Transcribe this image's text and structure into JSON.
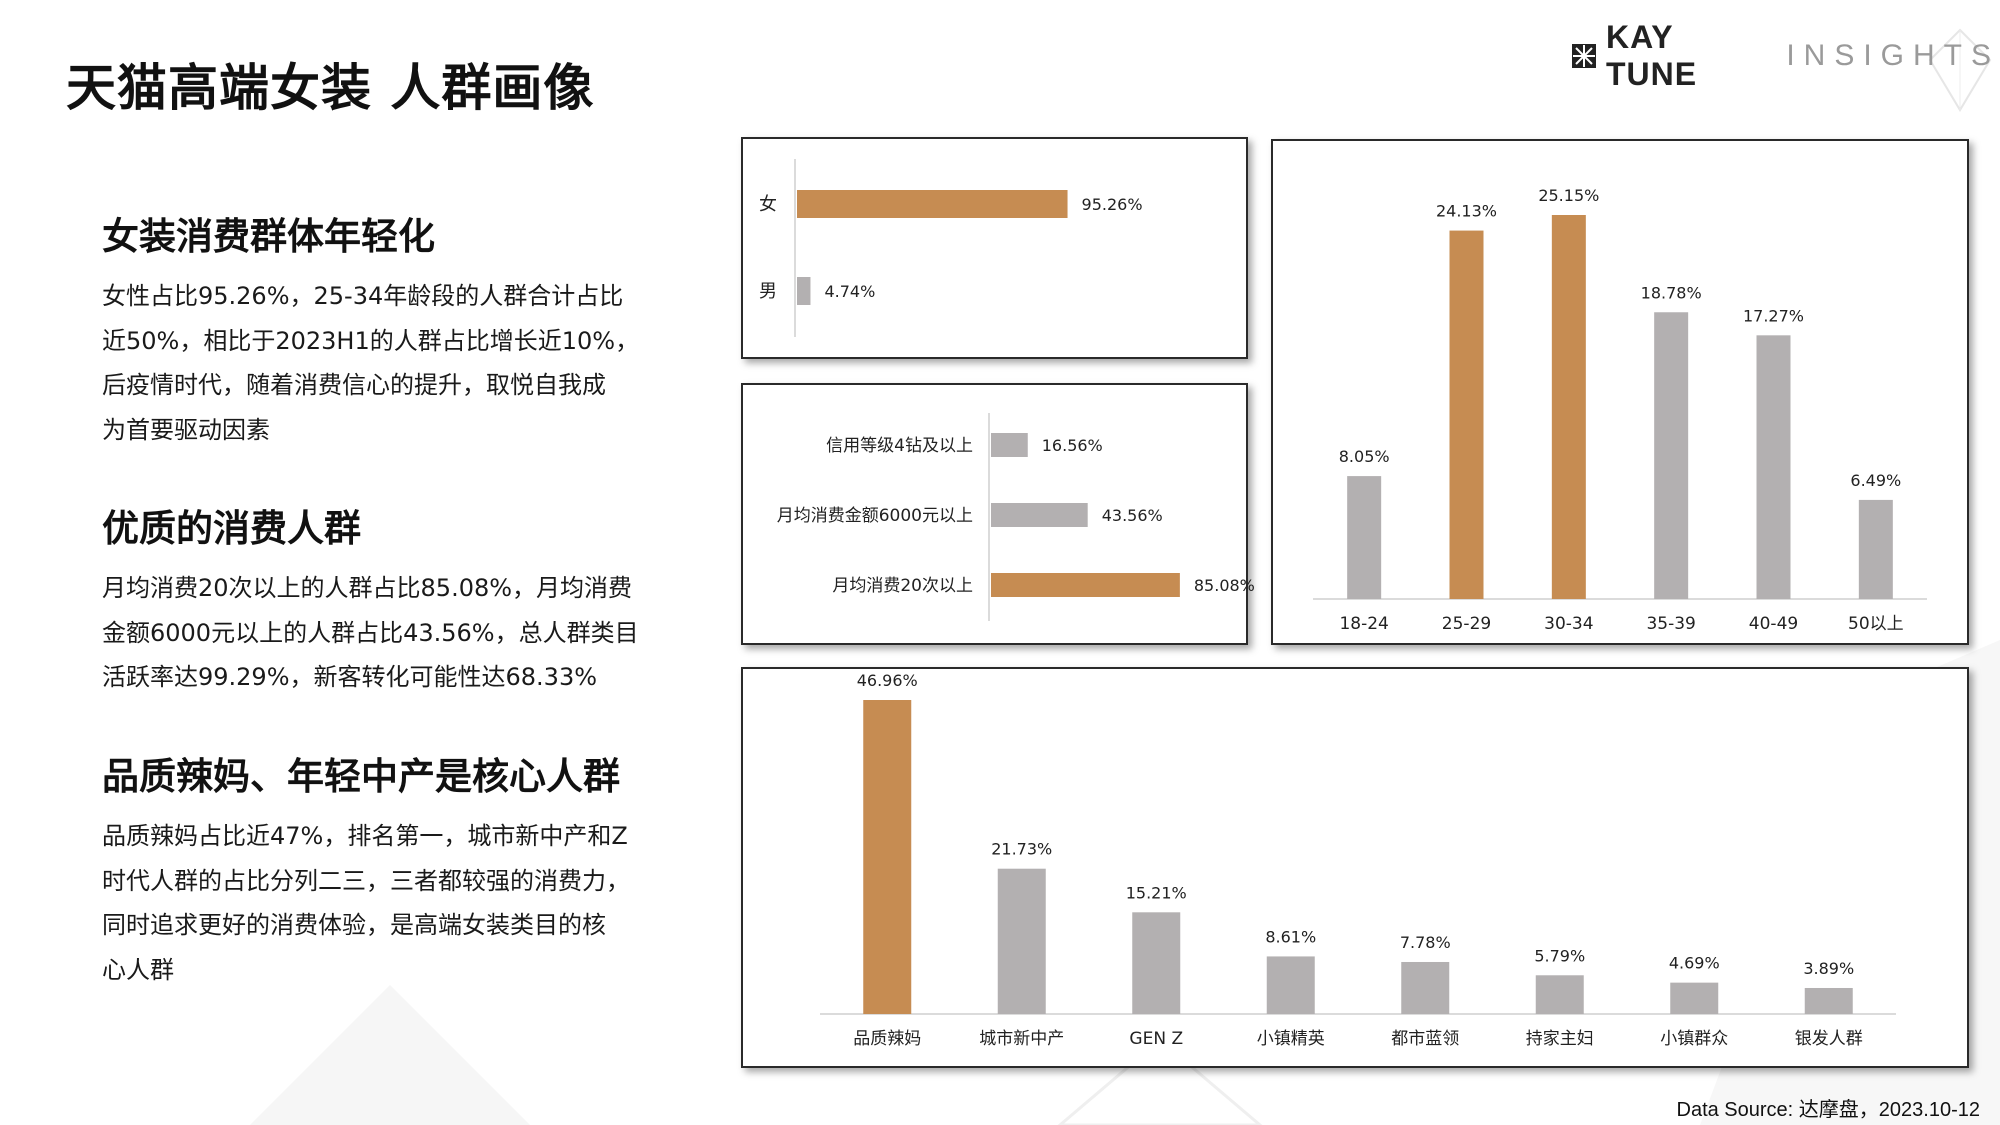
{
  "page": {
    "title": "天猫高端女装 人群画像",
    "logo_brand": "KAY TUNE",
    "logo_sub": "INSIGHTS",
    "source": "Data Source: 达摩盘，2023.10-12"
  },
  "sections": [
    {
      "heading": "女装消费群体年轻化",
      "lines": [
        "女性占比95.26%，25-34年龄段的人群合计占比",
        "近50%，相比于2023H1的人群占比增长近10%，",
        "后疫情时代，随着消费信心的提升，取悦自我成",
        "为首要驱动因素"
      ]
    },
    {
      "heading": "优质的消费人群",
      "lines": [
        "月均消费20次以上的人群占比85.08%，月均消费",
        "金额6000元以上的人群占比43.56%，总人群类目",
        "活跃率达99.29%，新客转化可能性达68.33%"
      ]
    },
    {
      "heading": "品质辣妈、年轻中产是核心人群",
      "lines": [
        "品质辣妈占比近47%，排名第一，城市新中产和Z",
        "时代人群的占比分列二三，三者都较强的消费力，",
        "同时追求更好的消费体验，是高端女装类目的核",
        "心人群"
      ]
    }
  ],
  "colors": {
    "highlight": "#c68c52",
    "neutral": "#b3b0b1",
    "axis": "#cfcfcf",
    "text": "#222222"
  },
  "chart_data": [
    {
      "type": "bar",
      "orientation": "horizontal",
      "categories": [
        "女",
        "男"
      ],
      "values": [
        95.26,
        4.74
      ],
      "labels": [
        "95.26%",
        "4.74%"
      ],
      "highlight": [
        true,
        false
      ]
    },
    {
      "type": "bar",
      "orientation": "horizontal",
      "categories": [
        "信用等级4钻及以上",
        "月均消费金额6000元以上",
        "月均消费20次以上"
      ],
      "values": [
        16.56,
        43.56,
        85.08
      ],
      "labels": [
        "16.56%",
        "43.56%",
        "85.08%"
      ],
      "highlight": [
        false,
        false,
        true
      ]
    },
    {
      "type": "bar",
      "orientation": "vertical",
      "categories": [
        "18-24",
        "25-29",
        "30-34",
        "35-39",
        "40-49",
        "50以上"
      ],
      "values": [
        8.05,
        24.13,
        25.15,
        18.78,
        17.27,
        6.49
      ],
      "labels": [
        "8.05%",
        "24.13%",
        "25.15%",
        "18.78%",
        "17.27%",
        "6.49%"
      ],
      "highlight": [
        false,
        true,
        true,
        false,
        false,
        false
      ]
    },
    {
      "type": "bar",
      "orientation": "vertical",
      "categories": [
        "品质辣妈",
        "城市新中产",
        "GEN Z",
        "小镇精英",
        "都市蓝领",
        "持家主妇",
        "小镇群众",
        "银发人群"
      ],
      "values": [
        46.96,
        21.73,
        15.21,
        8.61,
        7.78,
        5.79,
        4.69,
        3.89
      ],
      "labels": [
        "46.96%",
        "21.73%",
        "15.21%",
        "8.61%",
        "7.78%",
        "5.79%",
        "4.69%",
        "3.89%"
      ],
      "highlight": [
        true,
        false,
        false,
        false,
        false,
        false,
        false,
        false
      ]
    }
  ]
}
